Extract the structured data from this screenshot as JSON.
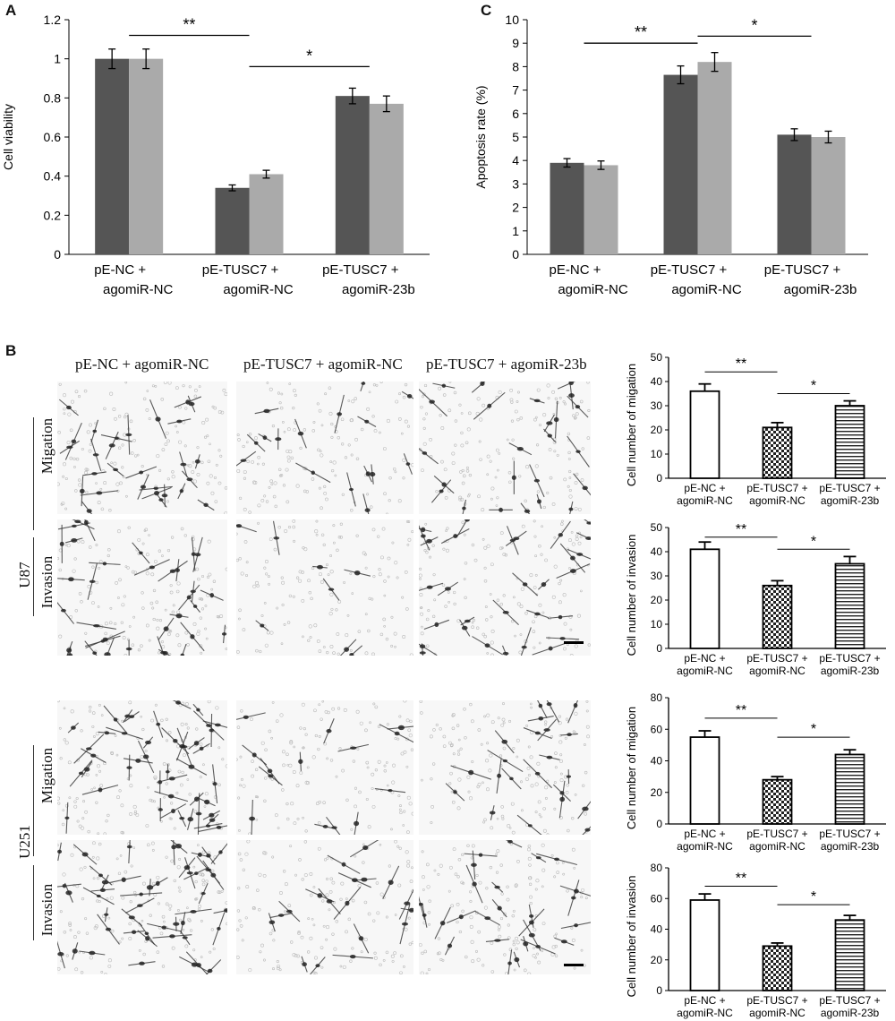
{
  "panels": {
    "a": "A",
    "b": "B",
    "c": "C"
  },
  "colors": {
    "dark": "#555555",
    "light": "#aaaaaa",
    "outline": "#000000",
    "micro_bg": "#f7f7f7",
    "cell": "#333333"
  },
  "panel_b": {
    "col_titles": [
      "pE-NC + agomiR-NC",
      "pE-TUSC7 + agomiR-NC",
      "pE-TUSC7 + agomiR-23b"
    ],
    "cell_lines": [
      "U87",
      "U251"
    ],
    "assays": [
      "Migation",
      "Invasion"
    ],
    "image_names": [
      "u87-migation",
      "u87-invasion",
      "u251-migation",
      "u251-invasion"
    ]
  },
  "chart_data": [
    {
      "id": "A",
      "type": "bar",
      "ylabel": "Cell viability",
      "ylim": [
        0,
        1.2
      ],
      "yticks": [
        "0",
        "0.2",
        "0.4",
        "0.6",
        "0.8",
        "1",
        "1.2"
      ],
      "categories": [
        [
          "pE-NC +",
          "agomiR-NC"
        ],
        [
          "pE-TUSC7 +",
          "agomiR-NC"
        ],
        [
          "pE-TUSC7 +",
          "agomiR-23b"
        ]
      ],
      "series": [
        {
          "values": [
            1.0,
            0.34,
            0.81
          ],
          "errors": [
            0.05,
            0.015,
            0.04
          ]
        },
        {
          "values": [
            1.0,
            0.41,
            0.77
          ],
          "errors": [
            0.05,
            0.02,
            0.04
          ]
        }
      ],
      "significance": [
        {
          "from": 0,
          "to": 1,
          "y": 1.12,
          "label": "**"
        },
        {
          "from": 1,
          "to": 2,
          "y": 0.96,
          "label": "*"
        }
      ],
      "grid": false
    },
    {
      "id": "C",
      "type": "bar",
      "ylabel": "Apoptosis rate (%)",
      "ylim": [
        0,
        10
      ],
      "yticks": [
        "0",
        "1",
        "2",
        "3",
        "4",
        "5",
        "6",
        "7",
        "8",
        "9",
        "10"
      ],
      "categories": [
        [
          "pE-NC +",
          "agomiR-NC"
        ],
        [
          "pE-TUSC7 +",
          "agomiR-NC"
        ],
        [
          "pE-TUSC7 +",
          "agomiR-23b"
        ]
      ],
      "series": [
        {
          "values": [
            3.9,
            7.65,
            5.1
          ],
          "errors": [
            0.18,
            0.38,
            0.25
          ]
        },
        {
          "values": [
            3.8,
            8.2,
            5.0
          ],
          "errors": [
            0.18,
            0.4,
            0.25
          ]
        }
      ],
      "significance": [
        {
          "from": 0,
          "to": 1,
          "y": 9.0,
          "label": "**"
        },
        {
          "from": 1,
          "to": 2,
          "y": 9.3,
          "label": "*"
        }
      ],
      "grid": false
    },
    {
      "id": "B-U87-migation",
      "type": "bar",
      "ylabel": "Cell number of migation",
      "ylim": [
        0,
        50
      ],
      "yticks": [
        "0",
        "10",
        "20",
        "30",
        "40",
        "50"
      ],
      "categories": [
        [
          "pE-NC +",
          "agomiR-NC"
        ],
        [
          "pE-TUSC7 +",
          "agomiR-NC"
        ],
        [
          "pE-TUSC7 +",
          "agomiR-23b"
        ]
      ],
      "values": [
        36,
        21,
        30
      ],
      "errors": [
        3,
        2,
        2
      ],
      "patterns": [
        "open",
        "checker",
        "horizontal"
      ],
      "significance": [
        {
          "from": 0,
          "to": 1,
          "y": 44,
          "label": "**"
        },
        {
          "from": 1,
          "to": 2,
          "y": 35,
          "label": "*"
        }
      ],
      "grid": false
    },
    {
      "id": "B-U87-invasion",
      "type": "bar",
      "ylabel": "Cell number of invasion",
      "ylim": [
        0,
        50
      ],
      "yticks": [
        "0",
        "10",
        "20",
        "30",
        "40",
        "50"
      ],
      "categories": [
        [
          "pE-NC +",
          "agomiR-NC"
        ],
        [
          "pE-TUSC7 +",
          "agomiR-NC"
        ],
        [
          "pE-TUSC7 +",
          "agomiR-23b"
        ]
      ],
      "values": [
        41,
        26,
        35
      ],
      "errors": [
        3,
        2,
        3
      ],
      "patterns": [
        "open",
        "checker",
        "horizontal"
      ],
      "significance": [
        {
          "from": 0,
          "to": 1,
          "y": 46,
          "label": "**"
        },
        {
          "from": 1,
          "to": 2,
          "y": 41,
          "label": "*"
        }
      ],
      "grid": false
    },
    {
      "id": "B-U251-migation",
      "type": "bar",
      "ylabel": "Cell number of migation",
      "ylim": [
        0,
        80
      ],
      "yticks": [
        "0",
        "20",
        "40",
        "60",
        "80"
      ],
      "categories": [
        [
          "pE-NC +",
          "agomiR-NC"
        ],
        [
          "pE-TUSC7 +",
          "agomiR-NC"
        ],
        [
          "pE-TUSC7 +",
          "agomiR-23b"
        ]
      ],
      "values": [
        55,
        28,
        44
      ],
      "errors": [
        4,
        2,
        3
      ],
      "patterns": [
        "open",
        "checker",
        "horizontal"
      ],
      "significance": [
        {
          "from": 0,
          "to": 1,
          "y": 67,
          "label": "**"
        },
        {
          "from": 1,
          "to": 2,
          "y": 55,
          "label": "*"
        }
      ],
      "grid": false
    },
    {
      "id": "B-U251-invasion",
      "type": "bar",
      "ylabel": "Cell number of invasion",
      "ylim": [
        0,
        80
      ],
      "yticks": [
        "0",
        "20",
        "40",
        "60",
        "80"
      ],
      "categories": [
        [
          "pE-NC +",
          "agomiR-NC"
        ],
        [
          "pE-TUSC7 +",
          "agomiR-NC"
        ],
        [
          "pE-TUSC7 +",
          "agomiR-23b"
        ]
      ],
      "values": [
        59,
        29,
        46
      ],
      "errors": [
        4,
        2,
        3
      ],
      "patterns": [
        "open",
        "checker",
        "horizontal"
      ],
      "significance": [
        {
          "from": 0,
          "to": 1,
          "y": 68,
          "label": "**"
        },
        {
          "from": 1,
          "to": 2,
          "y": 56,
          "label": "*"
        }
      ],
      "grid": false
    }
  ]
}
